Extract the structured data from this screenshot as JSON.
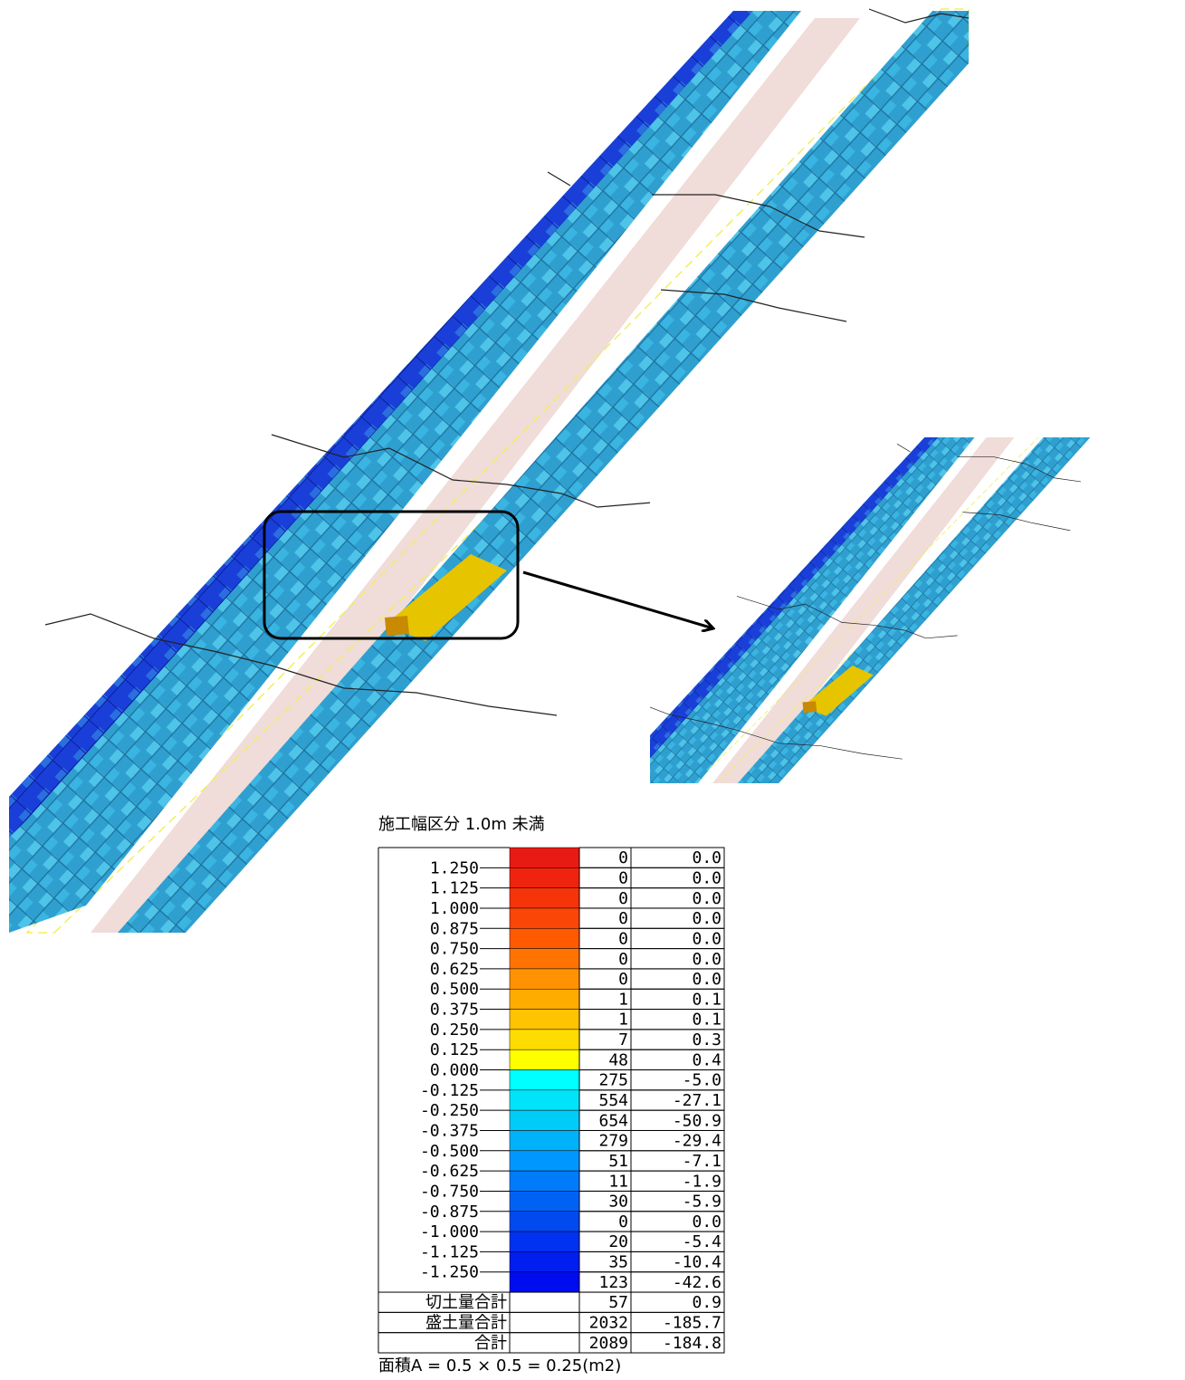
{
  "legend": {
    "title": "施工幅区分 1.0m 未満",
    "levels": [
      "1.250",
      "1.125",
      "1.000",
      "0.875",
      "0.750",
      "0.625",
      "0.500",
      "0.375",
      "0.250",
      "0.125",
      "0.000",
      "-0.125",
      "-0.250",
      "-0.375",
      "-0.500",
      "-0.625",
      "-0.750",
      "-0.875",
      "-1.000",
      "-1.125",
      "-1.250"
    ],
    "rows": [
      {
        "color": "#e81a14",
        "count": "0",
        "volume": "0.0"
      },
      {
        "color": "#f0240e",
        "count": "0",
        "volume": "0.0"
      },
      {
        "color": "#f5340a",
        "count": "0",
        "volume": "0.0"
      },
      {
        "color": "#fa4606",
        "count": "0",
        "volume": "0.0"
      },
      {
        "color": "#ff5a00",
        "count": "0",
        "volume": "0.0"
      },
      {
        "color": "#ff7400",
        "count": "0",
        "volume": "0.0"
      },
      {
        "color": "#ff9200",
        "count": "0",
        "volume": "0.0"
      },
      {
        "color": "#ffac00",
        "count": "1",
        "volume": "0.1"
      },
      {
        "color": "#ffc400",
        "count": "1",
        "volume": "0.1"
      },
      {
        "color": "#ffdc00",
        "count": "7",
        "volume": "0.3"
      },
      {
        "color": "#ffff00",
        "count": "48",
        "volume": "0.4"
      },
      {
        "color": "#00ffff",
        "count": "275",
        "volume": "-5.0"
      },
      {
        "color": "#00e4fa",
        "count": "554",
        "volume": "-27.1"
      },
      {
        "color": "#00ccf8",
        "count": "654",
        "volume": "-50.9"
      },
      {
        "color": "#00b2fa",
        "count": "279",
        "volume": "-29.4"
      },
      {
        "color": "#0098ff",
        "count": "51",
        "volume": "-7.1"
      },
      {
        "color": "#007cfa",
        "count": "11",
        "volume": "-1.9"
      },
      {
        "color": "#0062f4",
        "count": "30",
        "volume": "-5.9"
      },
      {
        "color": "#004af0",
        "count": "0",
        "volume": "0.0"
      },
      {
        "color": "#0032f0",
        "count": "20",
        "volume": "-5.4"
      },
      {
        "color": "#001ef0",
        "count": "35",
        "volume": "-10.4"
      },
      {
        "color": "#000cf0",
        "count": "123",
        "volume": "-42.6"
      }
    ],
    "totals": [
      {
        "label": "切土量合計",
        "count": "57",
        "volume": "0.9"
      },
      {
        "label": "盛土量合計",
        "count": "2032",
        "volume": "-185.7"
      },
      {
        "label": "合計",
        "count": "2089",
        "volume": "-184.8"
      }
    ],
    "footer": "面積A = 0.5 × 0.5 = 0.25(m2)"
  }
}
